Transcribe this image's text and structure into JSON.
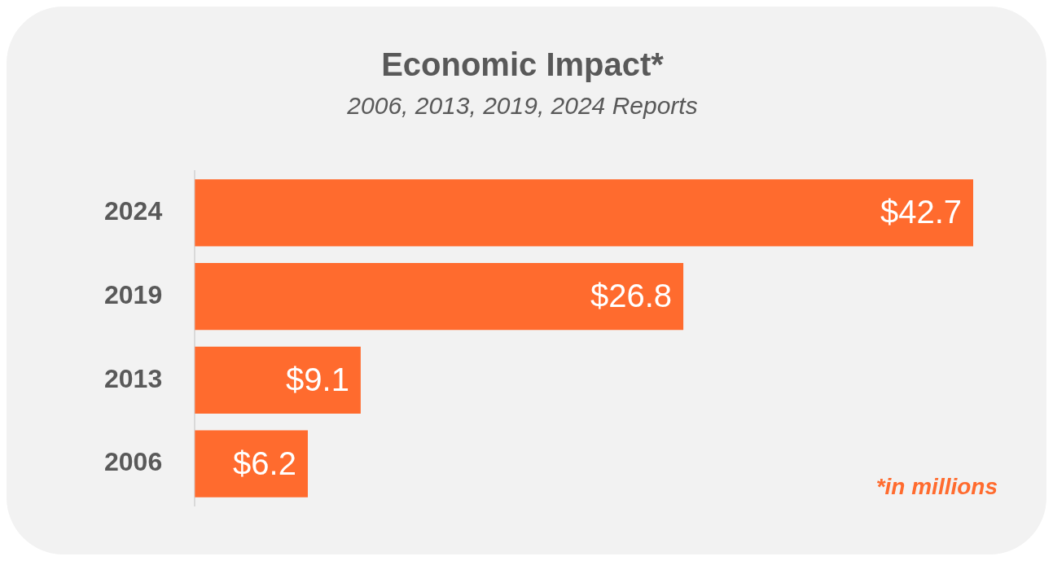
{
  "chart_data": {
    "type": "bar",
    "orientation": "horizontal",
    "title": "Economic Impact*",
    "subtitle": "2006, 2013, 2019, 2024 Reports",
    "categories": [
      "2024",
      "2019",
      "2013",
      "2006"
    ],
    "values": [
      42.7,
      26.8,
      9.1,
      6.2
    ],
    "value_labels": [
      "$42.7",
      "$26.8",
      "$9.1",
      "$6.2"
    ],
    "color": "#ff6b2e",
    "legend": false,
    "annotations": [
      "*in millions"
    ]
  }
}
